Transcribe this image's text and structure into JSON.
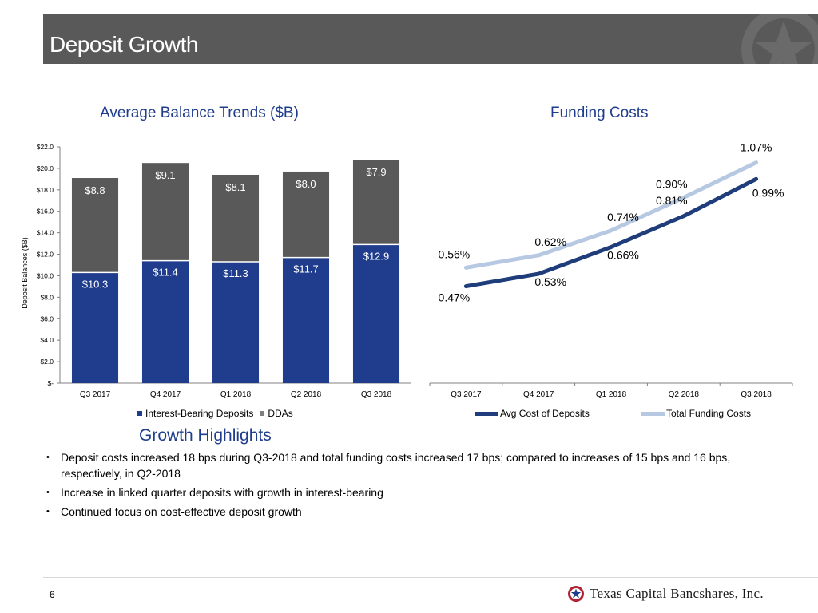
{
  "title": "Deposit Growth",
  "page_number": "6",
  "company_logo_text": "Texas Capital Bancshares, Inc.",
  "colors": {
    "interest_bearing": "#1f3d8c",
    "ddas": "#595959",
    "avg_cost": "#1f3d7a",
    "total_funding": "#b7c9e2",
    "accent": "#1f3d8c"
  },
  "chart_data": [
    {
      "type": "bar",
      "stacked": true,
      "title": "Average Balance Trends ($B)",
      "ylabel": "Deposit Balances ($B)",
      "xlabel": "",
      "categories": [
        "Q3 2017",
        "Q4 2017",
        "Q1 2018",
        "Q2 2018",
        "Q3 2018"
      ],
      "ylim": [
        0,
        22
      ],
      "yticks": [
        0,
        2,
        4,
        6,
        8,
        10,
        12,
        14,
        16,
        18,
        20,
        22
      ],
      "ytick_labels": [
        "$-",
        "$2.0",
        "$4.0",
        "$6.0",
        "$8.0",
        "$10.0",
        "$12.0",
        "$14.0",
        "$16.0",
        "$18.0",
        "$20.0",
        "$22.0"
      ],
      "series": [
        {
          "name": "Interest-Bearing Deposits",
          "values": [
            10.3,
            11.4,
            11.3,
            11.7,
            12.9
          ],
          "labels": [
            "$10.3",
            "$11.4",
            "$11.3",
            "$11.7",
            "$12.9"
          ]
        },
        {
          "name": "DDAs",
          "values": [
            8.8,
            9.1,
            8.1,
            8.0,
            7.9
          ],
          "labels": [
            "$8.8",
            "$9.1",
            "$8.1",
            "$8.0",
            "$7.9"
          ]
        }
      ],
      "legend": "bottom"
    },
    {
      "type": "line",
      "title": "Funding Costs",
      "categories": [
        "Q3 2017",
        "Q4 2017",
        "Q1 2018",
        "Q2 2018",
        "Q3 2018"
      ],
      "ylim": [
        0,
        1.2
      ],
      "series": [
        {
          "name": "Avg Cost of Deposits",
          "values": [
            0.47,
            0.53,
            0.66,
            0.81,
            0.99
          ],
          "labels": [
            "0.47%",
            "0.53%",
            "0.66%",
            "0.81%",
            "0.99%"
          ]
        },
        {
          "name": "Total Funding Costs",
          "values": [
            0.56,
            0.62,
            0.74,
            0.9,
            1.07
          ],
          "labels": [
            "0.56%",
            "0.62%",
            "0.74%",
            "0.90%",
            "1.07%"
          ]
        }
      ],
      "legend": "bottom"
    }
  ],
  "highlights": {
    "title": "Growth Highlights",
    "bullet_glyph": "•",
    "items": [
      "Deposit costs increased 18 bps during Q3-2018 and total funding costs increased 17 bps; compared to increases of 15 bps and 16 bps, respectively, in Q2-2018",
      "Increase in linked quarter deposits with growth in interest-bearing",
      "Continued focus on cost-effective deposit growth"
    ]
  }
}
